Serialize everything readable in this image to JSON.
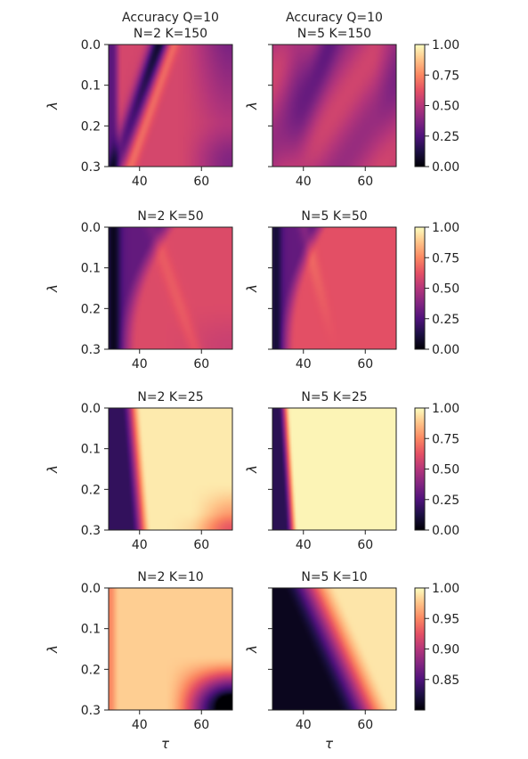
{
  "chart_data": {
    "type": "heatmap",
    "colormap": "magma",
    "xlabel": "τ",
    "ylabel": "λ",
    "xlim": [
      30,
      70
    ],
    "ylim": [
      0.3,
      0.0
    ],
    "xticks": [
      "40",
      "60"
    ],
    "yticks": [
      "0.0",
      "0.1",
      "0.2",
      "0.3"
    ],
    "rows": [
      {
        "colorbar": {
          "ticks": [
            "0.00",
            "0.25",
            "0.50",
            "0.75",
            "1.00"
          ],
          "vmin": 0.0,
          "vmax": 1.0
        },
        "panels": [
          {
            "title": "Accuracy Q=10\nN=2 K=150",
            "pattern": "n2k150"
          },
          {
            "title": "Accuracy Q=10\nN=5 K=150",
            "pattern": "n5k150"
          }
        ]
      },
      {
        "colorbar": {
          "ticks": [
            "0.00",
            "0.25",
            "0.50",
            "0.75",
            "1.00"
          ],
          "vmin": 0.0,
          "vmax": 1.0
        },
        "panels": [
          {
            "title": "N=2 K=50",
            "pattern": "n2k50"
          },
          {
            "title": "N=5 K=50",
            "pattern": "n5k50"
          }
        ]
      },
      {
        "colorbar": {
          "ticks": [
            "0.00",
            "0.25",
            "0.50",
            "0.75",
            "1.00"
          ],
          "vmin": 0.0,
          "vmax": 1.0
        },
        "panels": [
          {
            "title": "N=2 K=25",
            "pattern": "n2k25"
          },
          {
            "title": "N=5 K=25",
            "pattern": "n5k25"
          }
        ]
      },
      {
        "colorbar": {
          "ticks": [
            "0.85",
            "0.90",
            "0.95",
            "1.00"
          ],
          "vmin": 0.8,
          "vmax": 1.0
        },
        "panels": [
          {
            "title": "N=2 K=10",
            "pattern": "n2k10"
          },
          {
            "title": "N=5 K=10",
            "pattern": "n5k10"
          }
        ]
      }
    ]
  }
}
